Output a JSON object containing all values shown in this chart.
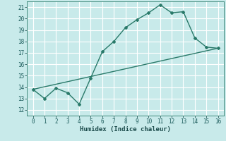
{
  "xlabel": "Humidex (Indice chaleur)",
  "bg_color": "#c8eaea",
  "grid_color": "#ffffff",
  "line_color": "#2a7a6a",
  "xlim": [
    -0.5,
    16.5
  ],
  "ylim": [
    11.5,
    21.5
  ],
  "xticks": [
    0,
    1,
    2,
    3,
    4,
    5,
    6,
    7,
    8,
    9,
    10,
    11,
    12,
    13,
    14,
    15,
    16
  ],
  "yticks": [
    12,
    13,
    14,
    15,
    16,
    17,
    18,
    19,
    20,
    21
  ],
  "curve1_x": [
    0,
    1,
    2,
    3,
    4,
    5,
    6,
    7,
    8,
    9,
    10,
    11,
    12,
    13,
    14,
    15,
    16
  ],
  "curve1_y": [
    13.8,
    13.0,
    13.9,
    13.5,
    12.5,
    14.8,
    17.1,
    18.0,
    19.2,
    19.9,
    20.5,
    21.2,
    20.5,
    20.6,
    18.3,
    17.5,
    17.4
  ],
  "curve2_x": [
    0,
    16
  ],
  "curve2_y": [
    13.8,
    17.4
  ],
  "marker_style": "D",
  "marker_size": 2.0,
  "line_width": 1.0
}
